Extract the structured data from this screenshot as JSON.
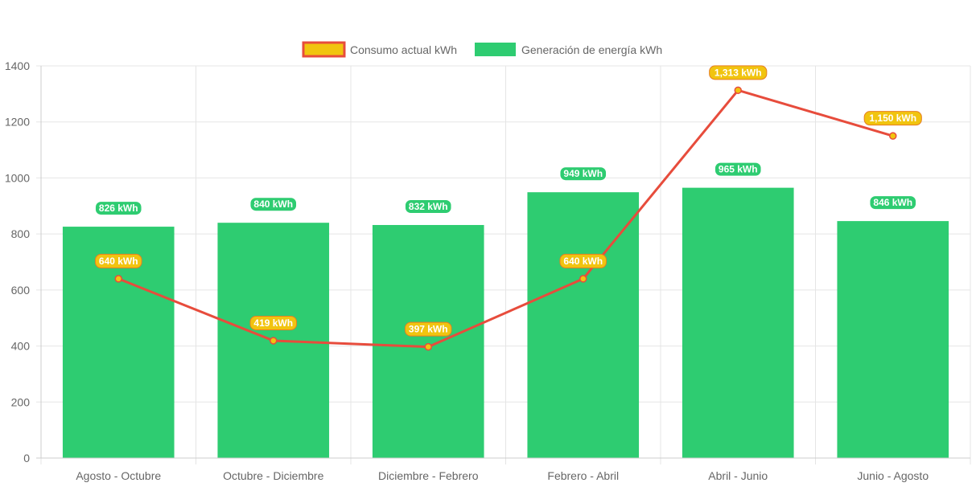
{
  "chart_data": {
    "type": "bar",
    "categories": [
      "Agosto - Octubre",
      "Octubre - Diciembre",
      "Diciembre - Febrero",
      "Febrero - Abril",
      "Abril - Junio",
      "Junio - Agosto"
    ],
    "series": [
      {
        "name": "Consumo actual kWh",
        "type": "line",
        "values": [
          640,
          419,
          397,
          640,
          1313,
          1150
        ],
        "data_labels": [
          "640 kWh",
          "419 kWh",
          "397 kWh",
          "640 kWh",
          "1,313 kWh",
          "1,150 kWh"
        ],
        "color": "#e74c3c",
        "fill_color": "#f1c40f"
      },
      {
        "name": "Generación de energía kWh",
        "type": "bar",
        "values": [
          826,
          840,
          832,
          949,
          965,
          846
        ],
        "data_labels": [
          "826 kWh",
          "840 kWh",
          "832 kWh",
          "949 kWh",
          "965 kWh",
          "846 kWh"
        ],
        "color": "#2ecc71"
      }
    ],
    "ylim": [
      0,
      1400
    ],
    "yticks": [
      "0",
      "200",
      "400",
      "600",
      "800",
      "1000",
      "1200",
      "1400"
    ],
    "grid": true,
    "legend_position": "top-center"
  }
}
